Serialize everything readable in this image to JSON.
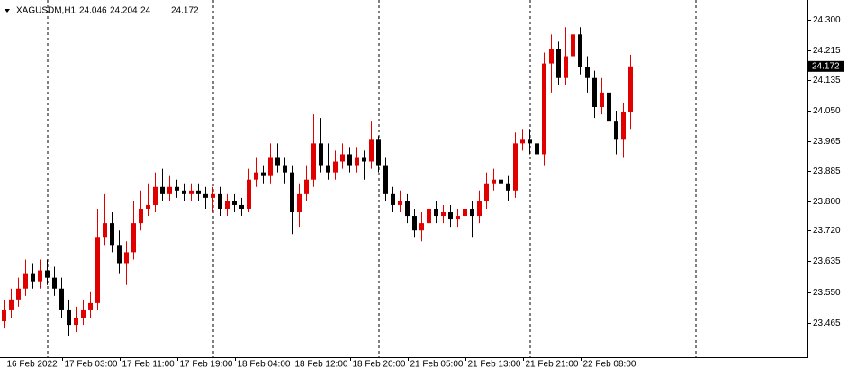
{
  "chart_data": {
    "type": "candlestick",
    "title": "XAGUSDM,H1",
    "bull_color": "#e00000",
    "bear_color": "#000000",
    "categories": [
      "16 Feb 2022",
      null,
      null,
      null,
      null,
      null,
      null,
      null,
      "17 Feb 03:00",
      null,
      null,
      null,
      null,
      null,
      null,
      null,
      "17 Feb 11:00",
      null,
      null,
      null,
      null,
      null,
      null,
      null,
      "17 Feb 19:00",
      null,
      null,
      null,
      null,
      null,
      null,
      null,
      "18 Feb 04:00",
      null,
      null,
      null,
      null,
      null,
      null,
      null,
      "18 Feb 12:00",
      null,
      null,
      null,
      null,
      null,
      null,
      null,
      "18 Feb 20:00",
      null,
      null,
      null,
      null,
      null,
      null,
      null,
      "21 Feb 05:00",
      null,
      null,
      null,
      null,
      null,
      null,
      null,
      "21 Feb 13:00",
      null,
      null,
      null,
      null,
      null,
      null,
      null,
      "21 Feb 21:00",
      null,
      null,
      null,
      null,
      null,
      null,
      null,
      "22 Feb 08:00",
      null,
      null,
      null,
      null,
      null,
      null,
      null
    ],
    "open": [
      23.47,
      23.5,
      23.53,
      23.56,
      23.6,
      23.58,
      23.61,
      23.59,
      23.56,
      23.5,
      23.46,
      23.48,
      23.5,
      23.52,
      23.7,
      23.74,
      23.68,
      23.63,
      23.66,
      23.74,
      23.78,
      23.79,
      23.84,
      23.82,
      23.84,
      23.83,
      23.82,
      23.83,
      23.82,
      23.81,
      23.82,
      23.78,
      23.8,
      23.79,
      23.78,
      23.86,
      23.88,
      23.87,
      23.92,
      23.9,
      23.88,
      23.77,
      23.82,
      23.86,
      23.96,
      23.9,
      23.88,
      23.91,
      23.93,
      23.9,
      23.92,
      23.91,
      23.97,
      23.9,
      23.82,
      23.79,
      23.8,
      23.76,
      23.72,
      23.74,
      23.78,
      23.76,
      23.77,
      23.75,
      23.76,
      23.78,
      23.76,
      23.8,
      23.85,
      23.86,
      23.85,
      23.83,
      23.96,
      23.97,
      23.96,
      23.93,
      24.18,
      24.22,
      24.14,
      24.2,
      24.26,
      24.17,
      24.14,
      24.06,
      24.1,
      24.02,
      23.97,
      24.046
    ],
    "high": [
      23.53,
      23.56,
      23.59,
      23.64,
      23.63,
      23.64,
      23.64,
      23.62,
      23.59,
      23.53,
      23.51,
      23.53,
      23.55,
      23.78,
      23.82,
      23.77,
      23.72,
      23.69,
      23.8,
      23.83,
      23.85,
      23.88,
      23.89,
      23.87,
      23.86,
      23.85,
      23.85,
      23.85,
      23.84,
      23.84,
      23.84,
      23.82,
      23.82,
      23.81,
      23.89,
      23.92,
      23.9,
      23.96,
      23.96,
      23.92,
      23.9,
      23.85,
      23.9,
      24.04,
      24.03,
      23.96,
      23.94,
      23.96,
      23.95,
      23.95,
      23.94,
      24.02,
      23.98,
      23.92,
      23.84,
      23.83,
      23.82,
      23.78,
      23.77,
      23.81,
      23.8,
      23.79,
      23.79,
      23.78,
      23.8,
      23.8,
      23.83,
      23.88,
      23.89,
      23.88,
      23.87,
      23.99,
      24.0,
      24.0,
      23.99,
      24.21,
      24.26,
      24.24,
      24.28,
      24.3,
      24.28,
      24.2,
      24.16,
      24.14,
      24.12,
      24.05,
      24.07,
      24.204
    ],
    "low": [
      23.45,
      23.48,
      23.51,
      23.54,
      23.56,
      23.56,
      23.57,
      23.54,
      23.48,
      23.43,
      23.44,
      23.46,
      23.48,
      23.5,
      23.68,
      23.66,
      23.6,
      23.57,
      23.64,
      23.72,
      23.76,
      23.77,
      23.8,
      23.8,
      23.81,
      23.8,
      23.8,
      23.8,
      23.78,
      23.77,
      23.76,
      23.76,
      23.77,
      23.76,
      23.77,
      23.84,
      23.85,
      23.85,
      23.88,
      23.85,
      23.71,
      23.73,
      23.8,
      23.84,
      23.88,
      23.86,
      23.86,
      23.89,
      23.88,
      23.88,
      23.86,
      23.89,
      23.88,
      23.8,
      23.77,
      23.77,
      23.74,
      23.7,
      23.69,
      23.72,
      23.74,
      23.74,
      23.73,
      23.73,
      23.74,
      23.7,
      23.74,
      23.78,
      23.83,
      23.83,
      23.8,
      23.81,
      23.94,
      23.93,
      23.89,
      23.9,
      24.1,
      24.12,
      24.12,
      24.18,
      24.15,
      24.1,
      24.03,
      24.04,
      23.99,
      23.93,
      23.92,
      24.0
    ],
    "close": [
      23.5,
      23.53,
      23.56,
      23.6,
      23.58,
      23.61,
      23.59,
      23.56,
      23.5,
      23.46,
      23.48,
      23.5,
      23.52,
      23.7,
      23.74,
      23.68,
      23.63,
      23.66,
      23.74,
      23.78,
      23.79,
      23.84,
      23.82,
      23.84,
      23.83,
      23.82,
      23.83,
      23.82,
      23.81,
      23.82,
      23.78,
      23.8,
      23.79,
      23.78,
      23.86,
      23.88,
      23.87,
      23.92,
      23.9,
      23.88,
      23.77,
      23.82,
      23.86,
      23.96,
      23.9,
      23.88,
      23.91,
      23.93,
      23.9,
      23.92,
      23.91,
      23.97,
      23.9,
      23.82,
      23.79,
      23.8,
      23.76,
      23.72,
      23.74,
      23.78,
      23.76,
      23.77,
      23.75,
      23.76,
      23.78,
      23.76,
      23.8,
      23.85,
      23.86,
      23.85,
      23.83,
      23.96,
      23.97,
      23.96,
      23.93,
      24.18,
      24.22,
      24.14,
      24.2,
      24.26,
      24.17,
      24.14,
      24.06,
      24.1,
      24.02,
      23.97,
      24.046,
      24.172
    ],
    "ylim": [
      23.371,
      24.35
    ],
    "yticks": [
      {
        "value": 24.3,
        "label": "24.300"
      },
      {
        "value": 24.215,
        "label": "24.215"
      },
      {
        "value": 24.135,
        "label": "24.135"
      },
      {
        "value": 24.05,
        "label": "24.050"
      },
      {
        "value": 23.965,
        "label": "23.965"
      },
      {
        "value": 23.885,
        "label": "23.885"
      },
      {
        "value": 23.8,
        "label": "23.800"
      },
      {
        "value": 23.72,
        "label": "23.720"
      },
      {
        "value": 23.635,
        "label": "23.635"
      },
      {
        "value": 23.55,
        "label": "23.550"
      },
      {
        "value": 23.465,
        "label": "23.465"
      }
    ]
  }
}
